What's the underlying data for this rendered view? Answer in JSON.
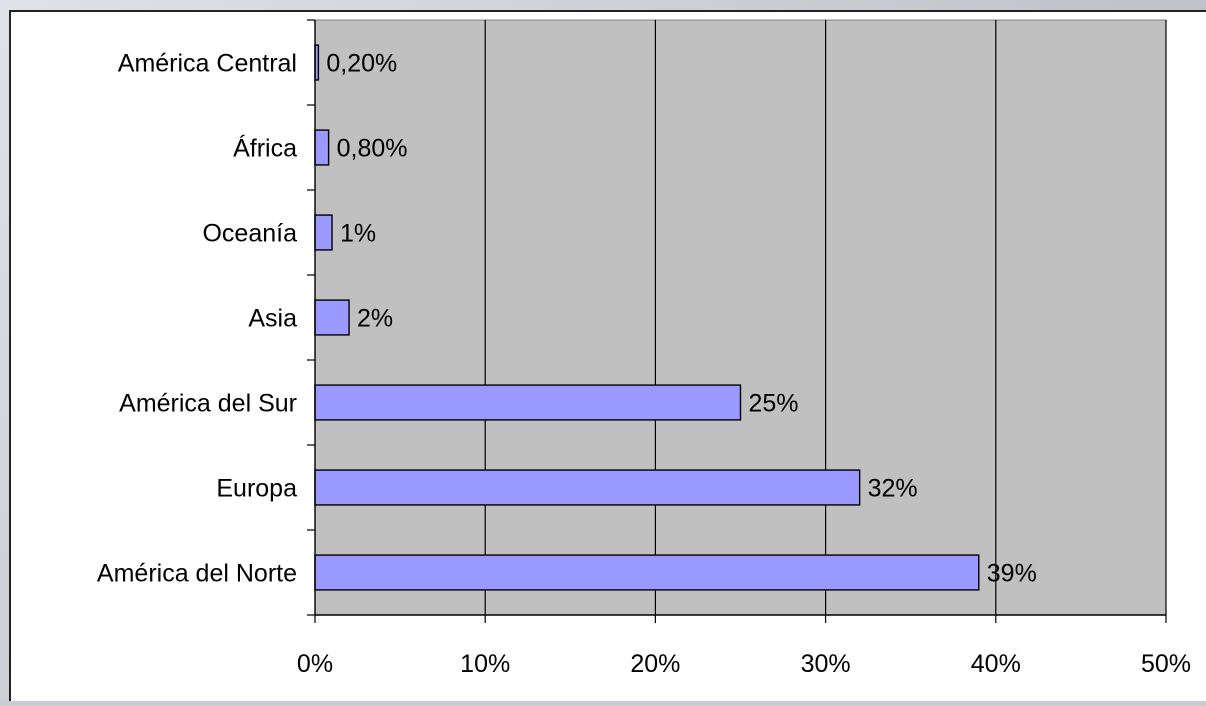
{
  "chart_data": {
    "type": "bar",
    "orientation": "horizontal",
    "categories": [
      "América Central",
      "África",
      "Oceanía",
      "Asia",
      "América del Sur",
      "Europa",
      "América del Norte"
    ],
    "values": [
      0.2,
      0.8,
      1,
      2,
      25,
      32,
      39
    ],
    "data_labels": [
      "0,20%",
      "0,80%",
      "1%",
      "2%",
      "25%",
      "32%",
      "39%"
    ],
    "x_ticks": [
      {
        "value": 0,
        "label": "0%"
      },
      {
        "value": 10,
        "label": "10%"
      },
      {
        "value": 20,
        "label": "20%"
      },
      {
        "value": 30,
        "label": "30%"
      },
      {
        "value": 40,
        "label": "40%"
      },
      {
        "value": 50,
        "label": "50%"
      }
    ],
    "xlim": [
      0,
      50
    ],
    "title": "",
    "xlabel": "",
    "ylabel": "",
    "grid": "vertical",
    "legend": "none",
    "colors": {
      "bar_fill": "#9999ff",
      "bar_stroke": "#000000",
      "plot_background": "#c0c0c0",
      "gridline": "#000000"
    }
  }
}
